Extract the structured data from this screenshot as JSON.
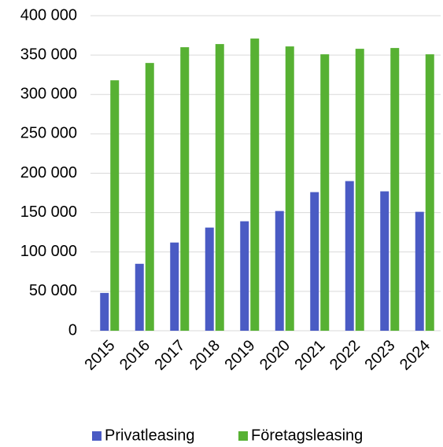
{
  "chart_data": {
    "type": "bar",
    "categories": [
      "2015",
      "2016",
      "2017",
      "2018",
      "2019",
      "2020",
      "2021",
      "2022",
      "2023",
      "2024"
    ],
    "series": [
      {
        "name": "Privatleasing",
        "color": "#4a5bc4",
        "values": [
          48000,
          85000,
          112000,
          131000,
          139000,
          152000,
          176000,
          190000,
          177000,
          151000
        ]
      },
      {
        "name": "Företagsleasing",
        "color": "#57b133",
        "values": [
          318000,
          340000,
          360000,
          364000,
          371000,
          361000,
          351000,
          358000,
          359000,
          351000
        ]
      }
    ],
    "ylim": [
      0,
      400000
    ],
    "yticks": [
      0,
      {
        "value": 50000,
        "label": "50 000"
      },
      {
        "value": 100000,
        "label": "100 000"
      },
      {
        "value": 150000,
        "label": "150 000"
      },
      {
        "value": 200000,
        "label": "200 000"
      },
      {
        "value": 250000,
        "label": "250 000"
      },
      {
        "value": 300000,
        "label": "300 000"
      },
      {
        "value": 350000,
        "label": "350 000"
      },
      {
        "value": 400000,
        "label": "400 000"
      }
    ],
    "grid": true,
    "legend": "bottom"
  }
}
